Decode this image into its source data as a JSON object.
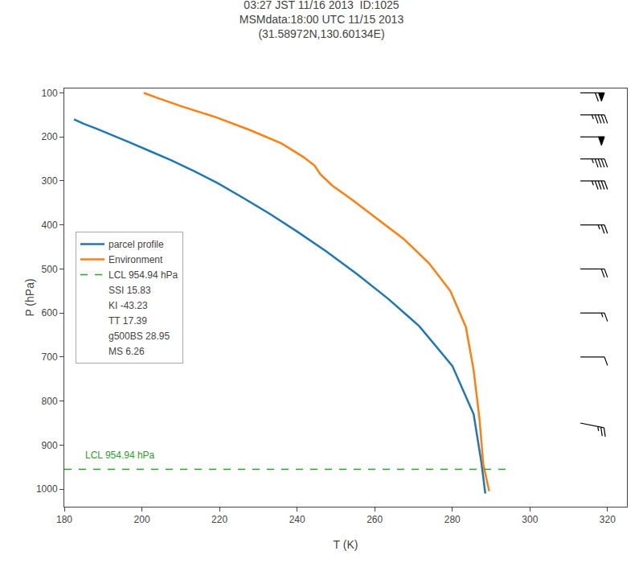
{
  "chart_data": {
    "type": "line",
    "title": "03:27 JST 11/16 2013  ID:1025\nMSMdata:18:00 UTC 11/15 2013\n(31.58972N,130.60134E)",
    "xlabel": "T (K)",
    "ylabel": "P (hPa)",
    "xlim": [
      180,
      325
    ],
    "ylim": [
      1040,
      90
    ],
    "xticks": [
      180,
      200,
      220,
      240,
      260,
      280,
      300,
      320
    ],
    "yticks": [
      100,
      200,
      300,
      400,
      500,
      600,
      700,
      800,
      900,
      1000
    ],
    "grid": false,
    "legend": "center left",
    "series": [
      {
        "name": "parcel profile",
        "color": "#1f77b4",
        "x": [
          182.5,
          185.0,
          188.5,
          192.5,
          197.0,
          202.0,
          207.5,
          213.5,
          219.5,
          226.0,
          233.0,
          240.0,
          247.5,
          255.5,
          263.5,
          271.5,
          280.0,
          285.5,
          287.5,
          288.5
        ],
        "values": [
          160,
          170,
          182,
          196,
          213,
          232,
          253,
          278,
          305,
          338,
          375,
          415,
          460,
          512,
          568,
          630,
          720,
          830,
          940,
          1010
        ]
      },
      {
        "name": "Environment",
        "color": "#ff7f0e",
        "x": [
          200.5,
          203.5,
          210.0,
          219.0,
          228.0,
          236.0,
          241.5,
          244.5,
          246.0,
          249.0,
          254.5,
          260.5,
          267.5,
          274.0,
          279.5,
          283.5,
          285.5,
          287.0,
          288.0,
          289.5
        ],
        "values": [
          100,
          110,
          130,
          155,
          185,
          215,
          245,
          265,
          285,
          310,
          345,
          385,
          432,
          487,
          550,
          632,
          730,
          840,
          945,
          1005
        ]
      },
      {
        "name": "LCL 954.94 hPa",
        "color": "#2ca02c",
        "line_style": "dashed",
        "x": [
          180,
          295
        ],
        "values": [
          954.94,
          954.94
        ]
      }
    ],
    "legend_texts": [
      "SSI 15.83",
      "KI -43.23",
      "TT 17.39",
      "g500BS 28.95",
      "MS 6.26"
    ],
    "annotations": [
      {
        "text": "LCL 954.94 hPa",
        "x": 185,
        "y": 939.94,
        "color": "#2ca02c"
      }
    ],
    "wind_barbs": {
      "x": 313,
      "p": [
        100,
        150,
        200,
        250,
        300,
        400,
        500,
        600,
        700,
        850
      ],
      "u": [
        -60,
        -45,
        -50,
        -45,
        -45,
        -25,
        -20,
        -15,
        -10,
        -25
      ],
      "v": [
        0,
        0,
        0,
        0,
        0,
        0,
        0,
        0,
        0,
        5
      ]
    }
  }
}
